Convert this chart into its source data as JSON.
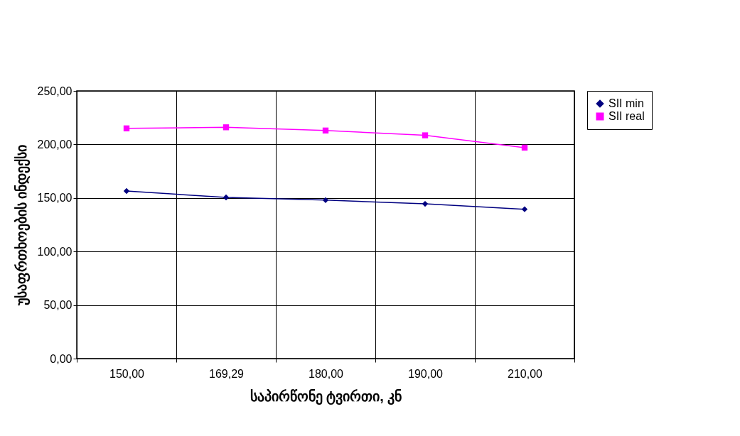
{
  "chart_data": {
    "type": "line",
    "xlabel": "საპირწონე ტვირთი, კნ",
    "ylabel": "უსაფრთხოების ინდექსი",
    "categories": [
      "150,00",
      "169,29",
      "180,00",
      "190,00",
      "210,00"
    ],
    "series": [
      {
        "name": "SII min",
        "color": "#000080",
        "marker": "diamond",
        "values": [
          156.5,
          150.5,
          148,
          144.5,
          139.5
        ]
      },
      {
        "name": "SII real",
        "color": "#ff00ff",
        "marker": "square",
        "values": [
          215,
          216,
          213,
          208.5,
          197
        ]
      }
    ],
    "ylim": [
      0,
      250
    ],
    "yticks": [
      {
        "value": 0,
        "label": "0,00"
      },
      {
        "value": 50,
        "label": "50,00"
      },
      {
        "value": 100,
        "label": "100,00"
      },
      {
        "value": 150,
        "label": "150,00"
      },
      {
        "value": 200,
        "label": "200,00"
      },
      {
        "value": 250,
        "label": "250,00"
      }
    ],
    "grid": true,
    "legend": "right",
    "line_style": "solid"
  }
}
